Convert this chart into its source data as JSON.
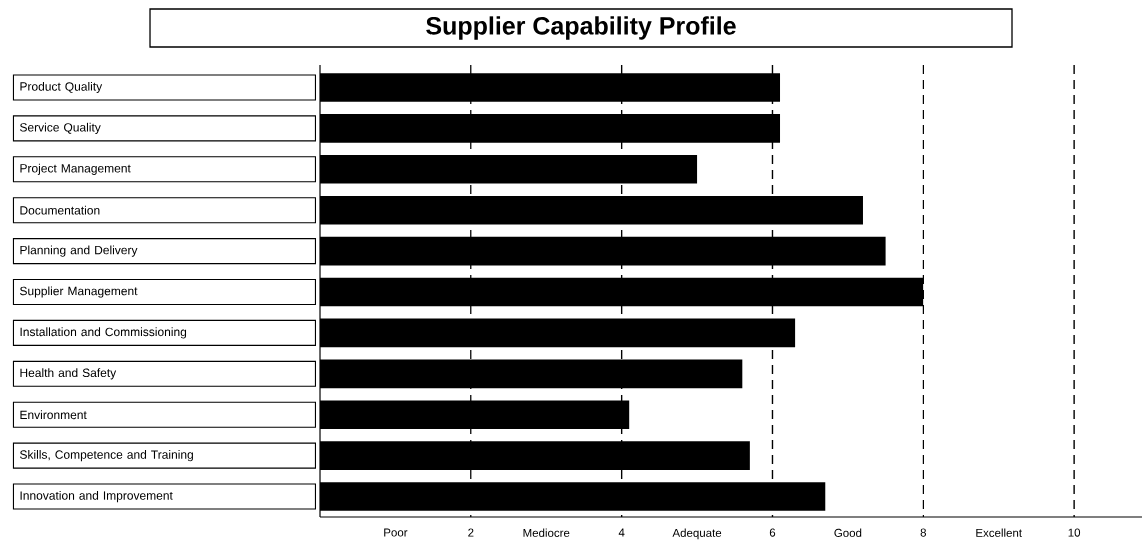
{
  "chart_data": {
    "type": "bar",
    "orientation": "horizontal",
    "title": "Supplier Capability Profile",
    "categories": [
      "Product Quality",
      "Service Quality",
      "Project Management",
      "Documentation",
      "Planning and Delivery",
      "Supplier Management",
      "Installation and Commissioning",
      "Health and Safety",
      "Environment",
      "Skills, Competence and Training",
      "Innovation and Improvement"
    ],
    "values": [
      6.1,
      6.1,
      5.0,
      7.2,
      7.5,
      8.0,
      6.3,
      5.6,
      4.1,
      5.7,
      6.7
    ],
    "color": "#000000",
    "xlim": [
      0,
      10.9
    ],
    "xticks": [
      {
        "value": 1,
        "label": "Poor"
      },
      2,
      {
        "value": 3,
        "label": "Mediocre"
      },
      4,
      {
        "value": 5,
        "label": "Adequate"
      },
      6,
      {
        "value": 7,
        "label": "Good"
      },
      8,
      {
        "value": 9,
        "label": "Excellent"
      },
      10
    ],
    "ref_lines": [
      {
        "axis": "x",
        "value": 2,
        "color": "#000000",
        "line_style": "dashed"
      },
      {
        "axis": "x",
        "value": 4,
        "color": "#000000",
        "line_style": "dashed"
      },
      {
        "axis": "x",
        "value": 6,
        "color": "#000000",
        "line_style": "dashed"
      },
      {
        "axis": "x",
        "value": 8,
        "color": "#000000",
        "line_style": "dashed"
      },
      {
        "axis": "x",
        "value": 10,
        "color": "#000000",
        "line_style": "dashed"
      }
    ],
    "grid": false
  }
}
